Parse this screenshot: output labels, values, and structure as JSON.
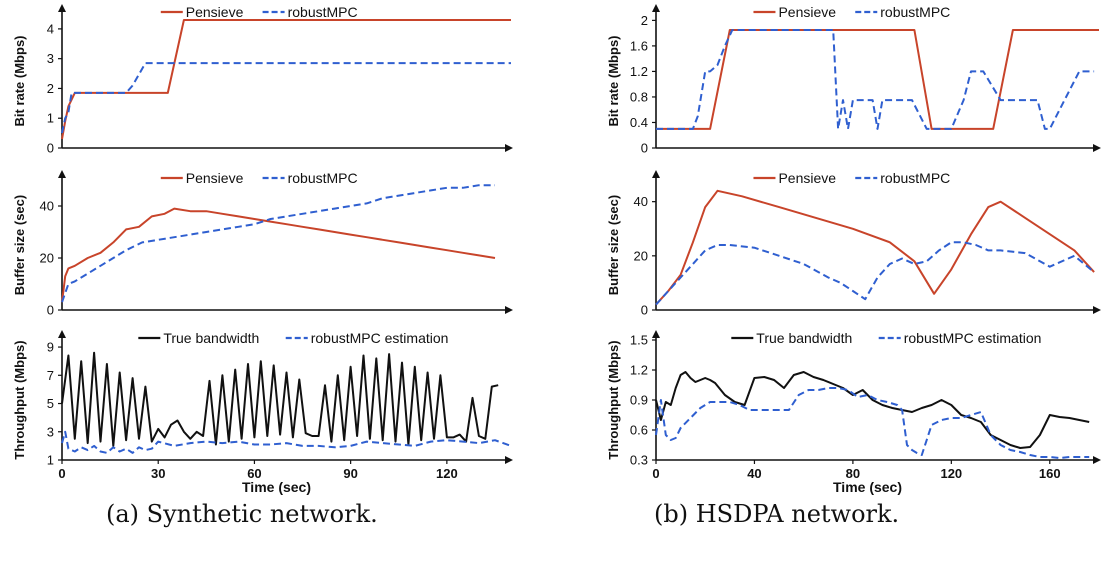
{
  "colors": {
    "red": "#c8442a",
    "blue": "#2f5fd0",
    "black": "#111111"
  },
  "captions": {
    "a": "(a) Synthetic network.",
    "b": "(b) HSDPA network."
  },
  "chart_data": [
    {
      "type": "line",
      "xlabel": "",
      "ylabel": "Bit rate (Mbps)",
      "xlim": [
        0,
        140
      ],
      "ylim": [
        0,
        4.5
      ],
      "xticks": [],
      "yticks": [
        0,
        1,
        2,
        3,
        4
      ],
      "legend": "top-center",
      "series": [
        {
          "name": "Pensieve",
          "color": "red",
          "style": "solid",
          "x": [
            0,
            1,
            2,
            4,
            6,
            10,
            20,
            33,
            38,
            60,
            90,
            110,
            140
          ],
          "y": [
            0.3,
            0.9,
            1.4,
            1.85,
            1.85,
            1.85,
            1.85,
            1.85,
            4.3,
            4.3,
            4.3,
            4.3,
            4.3
          ]
        },
        {
          "name": "robustMPC",
          "color": "blue",
          "style": "dashed",
          "x": [
            0,
            1,
            2,
            3,
            5,
            10,
            20,
            22,
            26,
            30,
            40,
            60,
            90,
            120,
            140
          ],
          "y": [
            0.5,
            1.0,
            1.2,
            1.85,
            1.85,
            1.85,
            1.85,
            2.1,
            2.85,
            2.85,
            2.85,
            2.85,
            2.85,
            2.85,
            2.85
          ]
        }
      ]
    },
    {
      "type": "line",
      "xlabel": "",
      "ylabel": "Buffer size (sec)",
      "xlim": [
        0,
        140
      ],
      "ylim": [
        0,
        50
      ],
      "xticks": [],
      "yticks": [
        0,
        20,
        40
      ],
      "legend": "top-center",
      "series": [
        {
          "name": "Pensieve",
          "color": "red",
          "style": "solid",
          "x": [
            0,
            1,
            2,
            4,
            8,
            12,
            16,
            20,
            24,
            28,
            32,
            35,
            40,
            45,
            50,
            55,
            60,
            65,
            70,
            75,
            80,
            85,
            90,
            95,
            100,
            105,
            110,
            115,
            120,
            125,
            130,
            135
          ],
          "y": [
            3,
            13,
            16,
            17,
            20,
            22,
            26,
            31,
            32,
            36,
            37,
            39,
            38,
            38,
            37,
            36,
            35,
            34,
            33,
            32,
            31,
            30,
            29,
            28,
            27,
            26,
            25,
            24,
            23,
            22,
            21,
            20
          ]
        },
        {
          "name": "robustMPC",
          "color": "blue",
          "style": "dashed",
          "x": [
            0,
            2,
            4,
            8,
            12,
            16,
            20,
            25,
            30,
            35,
            40,
            45,
            50,
            55,
            60,
            65,
            70,
            75,
            80,
            85,
            90,
            95,
            100,
            105,
            110,
            115,
            120,
            125,
            130,
            135
          ],
          "y": [
            3,
            10,
            11,
            14,
            17,
            20,
            23,
            26,
            27,
            28,
            29,
            30,
            31,
            32,
            33,
            35,
            36,
            37,
            38,
            39,
            40,
            41,
            43,
            44,
            45,
            46,
            47,
            47,
            48,
            48
          ]
        }
      ]
    },
    {
      "type": "line",
      "xlabel": "Time (sec)",
      "ylabel": "Throughput (Mbps)",
      "xlim": [
        0,
        140
      ],
      "ylim": [
        1,
        9.5
      ],
      "xticks": [
        0,
        30,
        60,
        90,
        120
      ],
      "yticks": [
        1,
        3,
        5,
        7,
        9
      ],
      "legend": "top-center",
      "series": [
        {
          "name": "True bandwidth",
          "color": "black",
          "style": "solid",
          "x": [
            0,
            2,
            4,
            6,
            8,
            10,
            12,
            14,
            16,
            18,
            20,
            22,
            24,
            26,
            28,
            30,
            32,
            34,
            36,
            38,
            40,
            42,
            44,
            46,
            48,
            50,
            52,
            54,
            56,
            58,
            60,
            62,
            64,
            66,
            68,
            70,
            72,
            74,
            76,
            78,
            80,
            82,
            84,
            86,
            88,
            90,
            92,
            94,
            96,
            98,
            100,
            102,
            104,
            106,
            108,
            110,
            112,
            114,
            116,
            118,
            120,
            122,
            124,
            126,
            128,
            130,
            132,
            134,
            136
          ],
          "y": [
            5,
            8.4,
            2.5,
            8.0,
            2.2,
            8.6,
            2.3,
            7.8,
            2.0,
            7.2,
            2.4,
            6.8,
            2.5,
            6.2,
            2.3,
            3.2,
            2.6,
            3.5,
            3.8,
            3.0,
            2.5,
            3.0,
            2.7,
            6.6,
            2.1,
            7.0,
            2.3,
            7.4,
            2.5,
            7.8,
            2.6,
            8.0,
            2.7,
            7.7,
            2.8,
            7.2,
            2.6,
            6.7,
            2.9,
            2.7,
            2.7,
            6.3,
            2.3,
            7.0,
            2.4,
            7.6,
            2.7,
            8.4,
            2.5,
            8.2,
            2.4,
            8.5,
            2.3,
            7.9,
            2.1,
            7.6,
            2.4,
            7.2,
            2.5,
            7.0,
            2.6,
            2.6,
            2.8,
            2.3,
            5.4,
            2.7,
            2.5,
            6.2,
            6.3
          ]
        },
        {
          "name": "robustMPC estimation",
          "color": "blue",
          "style": "dashed",
          "x": [
            0,
            1,
            2,
            4,
            6,
            8,
            10,
            12,
            14,
            16,
            18,
            20,
            22,
            24,
            26,
            28,
            30,
            35,
            40,
            45,
            50,
            55,
            60,
            65,
            70,
            75,
            80,
            85,
            90,
            95,
            100,
            105,
            110,
            115,
            120,
            125,
            130,
            135,
            140
          ],
          "y": [
            2.2,
            3.0,
            1.8,
            1.6,
            1.9,
            1.7,
            2.0,
            1.6,
            1.5,
            1.9,
            1.6,
            1.8,
            1.5,
            1.9,
            1.7,
            1.8,
            2.3,
            2.0,
            2.2,
            2.3,
            2.2,
            2.3,
            2.1,
            2.1,
            2.2,
            2.0,
            2.0,
            1.9,
            2.0,
            2.3,
            2.2,
            2.1,
            2.0,
            2.3,
            2.4,
            2.3,
            2.2,
            2.4,
            2.0
          ]
        }
      ]
    },
    {
      "type": "line",
      "xlabel": "",
      "ylabel": "Bit rate (Mbps)",
      "xlim": [
        0,
        180
      ],
      "ylim": [
        0,
        2.1
      ],
      "xticks": [],
      "yticks": [
        0,
        0.4,
        0.8,
        1.2,
        1.6,
        2
      ],
      "ytick_labels": [
        "0",
        "0.4",
        "0.8",
        "1.2",
        "1.6",
        "2"
      ],
      "legend": "top-center",
      "series": [
        {
          "name": "Pensieve",
          "color": "red",
          "style": "solid",
          "x": [
            0,
            8,
            16,
            22,
            30,
            50,
            80,
            100,
            105,
            112,
            118,
            125,
            133,
            137,
            145,
            150,
            160,
            175,
            180
          ],
          "y": [
            0.3,
            0.3,
            0.3,
            0.3,
            1.85,
            1.85,
            1.85,
            1.85,
            1.85,
            0.3,
            0.3,
            0.3,
            0.3,
            0.3,
            1.85,
            1.85,
            1.85,
            1.85,
            1.85
          ]
        },
        {
          "name": "robustMPC",
          "color": "blue",
          "style": "dashed",
          "x": [
            0,
            10,
            15,
            17,
            20,
            22,
            25,
            28,
            31,
            50,
            70,
            72,
            74,
            76,
            78,
            80,
            83,
            88,
            90,
            92,
            95,
            100,
            104,
            110,
            114,
            120,
            125,
            128,
            133,
            140,
            148,
            155,
            158,
            160,
            166,
            172,
            178
          ],
          "y": [
            0.3,
            0.3,
            0.3,
            0.5,
            1.2,
            1.2,
            1.3,
            1.6,
            1.85,
            1.85,
            1.85,
            1.85,
            0.3,
            0.75,
            0.3,
            0.75,
            0.75,
            0.75,
            0.3,
            0.75,
            0.75,
            0.75,
            0.75,
            0.3,
            0.3,
            0.3,
            0.75,
            1.2,
            1.2,
            0.75,
            0.75,
            0.75,
            0.3,
            0.3,
            0.75,
            1.2,
            1.2
          ]
        }
      ]
    },
    {
      "type": "line",
      "xlabel": "",
      "ylabel": "Buffer size (sec)",
      "xlim": [
        0,
        180
      ],
      "ylim": [
        0,
        48
      ],
      "xticks": [],
      "yticks": [
        0,
        20,
        40
      ],
      "legend": "top-center",
      "series": [
        {
          "name": "Pensieve",
          "color": "red",
          "style": "solid",
          "x": [
            0,
            5,
            10,
            15,
            20,
            25,
            35,
            50,
            65,
            80,
            95,
            105,
            113,
            120,
            128,
            135,
            140,
            150,
            160,
            170,
            178
          ],
          "y": [
            2,
            7,
            13,
            25,
            38,
            44,
            42,
            38,
            34,
            30,
            25,
            18,
            6,
            15,
            28,
            38,
            40,
            34,
            28,
            22,
            14
          ]
        },
        {
          "name": "robustMPC",
          "color": "blue",
          "style": "dashed",
          "x": [
            0,
            5,
            10,
            15,
            20,
            25,
            30,
            40,
            50,
            60,
            70,
            75,
            80,
            85,
            90,
            95,
            100,
            105,
            110,
            115,
            120,
            125,
            130,
            135,
            140,
            150,
            160,
            170,
            178
          ],
          "y": [
            2,
            7,
            12,
            17,
            22,
            24,
            24,
            23,
            20,
            17,
            12,
            10,
            7,
            4,
            12,
            17,
            19,
            17,
            18,
            22,
            25,
            25,
            24,
            22,
            22,
            21,
            16,
            20,
            14
          ]
        }
      ]
    },
    {
      "type": "line",
      "xlabel": "Time (sec)",
      "ylabel": "Throughput (Mbps)",
      "xlim": [
        0,
        180
      ],
      "ylim": [
        0.3,
        1.5
      ],
      "xticks": [
        0,
        40,
        80,
        120,
        160
      ],
      "yticks": [
        0.3,
        0.6,
        0.9,
        1.2,
        1.5
      ],
      "ytick_labels": [
        "0.3",
        "0.6",
        "0.9",
        "1.2",
        "1.5"
      ],
      "legend": "top-center",
      "series": [
        {
          "name": "True bandwidth",
          "color": "black",
          "style": "solid",
          "x": [
            0,
            2,
            4,
            6,
            8,
            10,
            12,
            14,
            16,
            18,
            20,
            22,
            24,
            28,
            32,
            36,
            40,
            44,
            48,
            52,
            56,
            60,
            64,
            68,
            72,
            76,
            80,
            84,
            88,
            92,
            96,
            100,
            104,
            108,
            112,
            116,
            120,
            124,
            128,
            132,
            136,
            140,
            144,
            148,
            152,
            156,
            160,
            164,
            168,
            172,
            176
          ],
          "y": [
            0.9,
            0.7,
            0.88,
            0.85,
            1.02,
            1.15,
            1.18,
            1.12,
            1.08,
            1.1,
            1.12,
            1.1,
            1.07,
            0.95,
            0.88,
            0.85,
            1.12,
            1.13,
            1.1,
            1.02,
            1.15,
            1.18,
            1.13,
            1.1,
            1.06,
            1.02,
            0.95,
            1.0,
            0.9,
            0.85,
            0.82,
            0.8,
            0.78,
            0.82,
            0.85,
            0.9,
            0.85,
            0.75,
            0.72,
            0.68,
            0.55,
            0.5,
            0.45,
            0.42,
            0.43,
            0.55,
            0.75,
            0.73,
            0.72,
            0.7,
            0.68
          ]
        },
        {
          "name": "robustMPC estimation",
          "color": "blue",
          "style": "dashed",
          "x": [
            0,
            2,
            4,
            6,
            8,
            10,
            14,
            18,
            22,
            26,
            30,
            34,
            38,
            42,
            46,
            50,
            54,
            58,
            62,
            66,
            70,
            74,
            78,
            82,
            86,
            90,
            94,
            98,
            100,
            102,
            104,
            106,
            108,
            112,
            116,
            120,
            124,
            128,
            132,
            136,
            140,
            144,
            148,
            152,
            156,
            160,
            164,
            168,
            172,
            176
          ],
          "y": [
            0.55,
            0.9,
            0.55,
            0.5,
            0.52,
            0.62,
            0.72,
            0.82,
            0.88,
            0.88,
            0.88,
            0.85,
            0.8,
            0.8,
            0.8,
            0.8,
            0.8,
            0.95,
            1.0,
            1.0,
            1.02,
            1.02,
            1.0,
            0.93,
            0.95,
            0.9,
            0.88,
            0.85,
            0.8,
            0.45,
            0.4,
            0.37,
            0.35,
            0.65,
            0.7,
            0.72,
            0.72,
            0.75,
            0.78,
            0.55,
            0.45,
            0.4,
            0.38,
            0.35,
            0.33,
            0.33,
            0.32,
            0.33,
            0.33,
            0.33
          ]
        }
      ]
    }
  ]
}
